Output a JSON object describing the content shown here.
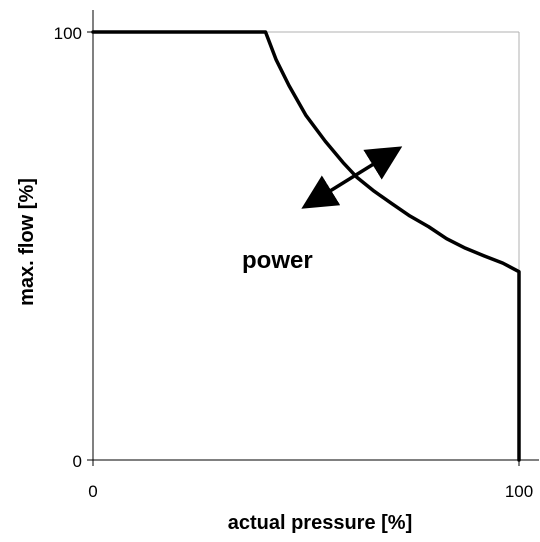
{
  "chart_data": {
    "type": "line",
    "title": "",
    "xlabel": "actual pressure [%]",
    "ylabel": "max. flow [%]",
    "xlim": [
      0,
      100
    ],
    "ylim": [
      0,
      100
    ],
    "x_ticks": [
      "0",
      "100"
    ],
    "y_ticks": [
      "0",
      "100"
    ],
    "grid": "major gridlines at 100 only",
    "legend": "none",
    "series": [
      {
        "points": [
          [
            0,
            100
          ],
          [
            40.5,
            100
          ],
          [
            43,
            93.5
          ],
          [
            46,
            87.5
          ],
          [
            50,
            80.5
          ],
          [
            54.5,
            74.5
          ],
          [
            58.7,
            69.5
          ],
          [
            62,
            66
          ],
          [
            66,
            62.8
          ],
          [
            70,
            60
          ],
          [
            74.4,
            57
          ],
          [
            78.8,
            54.5
          ],
          [
            83,
            51.7
          ],
          [
            87.4,
            49.5
          ],
          [
            91.8,
            47.7
          ],
          [
            96.2,
            46
          ],
          [
            100,
            44
          ],
          [
            100,
            0
          ]
        ]
      }
    ],
    "annotations": [
      {
        "text": "power",
        "arrow_from": [
          51,
          60
        ],
        "arrow_to": [
          70.5,
          72
        ]
      }
    ],
    "colors": {
      "line": "#000000",
      "axis": "#000000",
      "grid": "#b0b0b0"
    }
  }
}
